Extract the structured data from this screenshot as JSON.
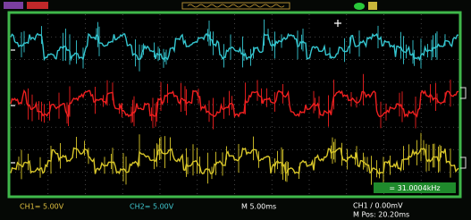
{
  "status_bar": {
    "ch1_scale": "CH1= 5.00V",
    "ch2_scale": "CH2= 5.00V",
    "timebase": "M 5.00ms",
    "trigger": "CH1 / 0.00mV",
    "position": "M Pos: 20.20ms"
  },
  "frequency": "= 31.0004kHz"
}
